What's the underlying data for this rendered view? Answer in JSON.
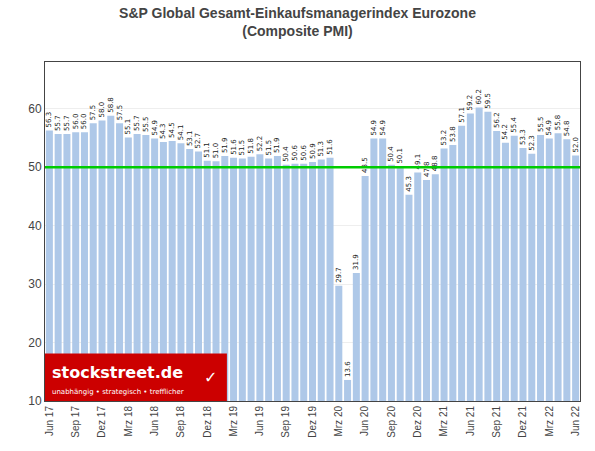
{
  "chart_data": {
    "type": "bar",
    "title": "S&P Global Gesamt-Einkaufsmanagerindex Eurozone",
    "subtitle": "(Composite PMI)",
    "categories": [
      "Jun 17",
      null,
      null,
      "Sep 17",
      null,
      null,
      "Dez 17",
      null,
      null,
      "Mrz 18",
      null,
      null,
      "Jun 18",
      null,
      null,
      "Sep 18",
      null,
      null,
      "Dez 18",
      null,
      null,
      "Mrz 19",
      null,
      null,
      "Jun 19",
      null,
      null,
      "Sep 19",
      null,
      null,
      "Dez 19",
      null,
      null,
      "Mrz 20",
      null,
      null,
      "Jun 20",
      null,
      null,
      "Sep 20",
      null,
      null,
      "Dez 20",
      null,
      null,
      "Mrz 21",
      null,
      null,
      "Jun 21",
      null,
      null,
      "Sep 21",
      null,
      null,
      "Dez 21",
      null,
      null,
      "Mrz 22",
      null,
      null,
      "Jun 22"
    ],
    "values": [
      56.3,
      55.7,
      55.7,
      56.0,
      56.0,
      57.5,
      58.0,
      58.8,
      57.5,
      55.1,
      55.7,
      55.5,
      54.9,
      54.3,
      54.5,
      54.1,
      53.1,
      52.7,
      51.1,
      51.0,
      51.9,
      51.6,
      51.5,
      51.8,
      52.2,
      51.5,
      51.9,
      50.4,
      50.6,
      50.6,
      50.9,
      51.3,
      51.6,
      29.7,
      13.6,
      31.9,
      48.5,
      54.9,
      54.9,
      50.4,
      50.1,
      45.3,
      49.1,
      47.8,
      48.8,
      53.2,
      53.8,
      57.1,
      59.2,
      60.2,
      59.5,
      56.2,
      54.2,
      55.4,
      53.3,
      52.3,
      55.5,
      54.9,
      55.8,
      54.8,
      52.0
    ],
    "value_labels": [
      "56.3",
      "55.7",
      "55.7",
      "56.0",
      "56.0",
      "57.5",
      "58.0",
      "58.8",
      "57.5",
      "55.1",
      "55.7",
      "55.5",
      "54.9",
      "54.3",
      "54.5",
      "54.1",
      "53.1",
      "52.7",
      "51.1",
      "51.0",
      "51.9",
      "51.6",
      "51.5",
      "51.8",
      "52.2",
      "51.5",
      "51.9",
      "50.4",
      "50.6",
      "50.6",
      "50.9",
      "51.3",
      "51.6",
      "29.7",
      "13.6",
      "31.9",
      "48.5",
      "54.9",
      "54.9",
      "50.4",
      "50.1",
      "45.3",
      "49.1",
      "47.8",
      "48.8",
      "53.2",
      "53.8",
      "57.1",
      "59.2",
      "60.2",
      "59.5",
      "56.2",
      "54.2",
      "55.4",
      "53.3",
      "52.3",
      "55.5",
      "54.9",
      "55.8",
      "54.8",
      "52.0"
    ],
    "color": "#aec8e8",
    "data_labels": true,
    "ylim": [
      10,
      68
    ],
    "yticks": [
      10,
      20,
      30,
      40,
      50,
      60
    ],
    "grid": true,
    "threshold": {
      "value": 50.0,
      "color": "#00cc00"
    },
    "annotations": [
      {
        "text": "stockstreet.de",
        "color": "#cc0000"
      },
      {
        "text": "unabhängig • strategisch • trefflicher",
        "color": "#cc0000"
      },
      {
        "text": "✓",
        "color": "#cc0000"
      }
    ]
  }
}
